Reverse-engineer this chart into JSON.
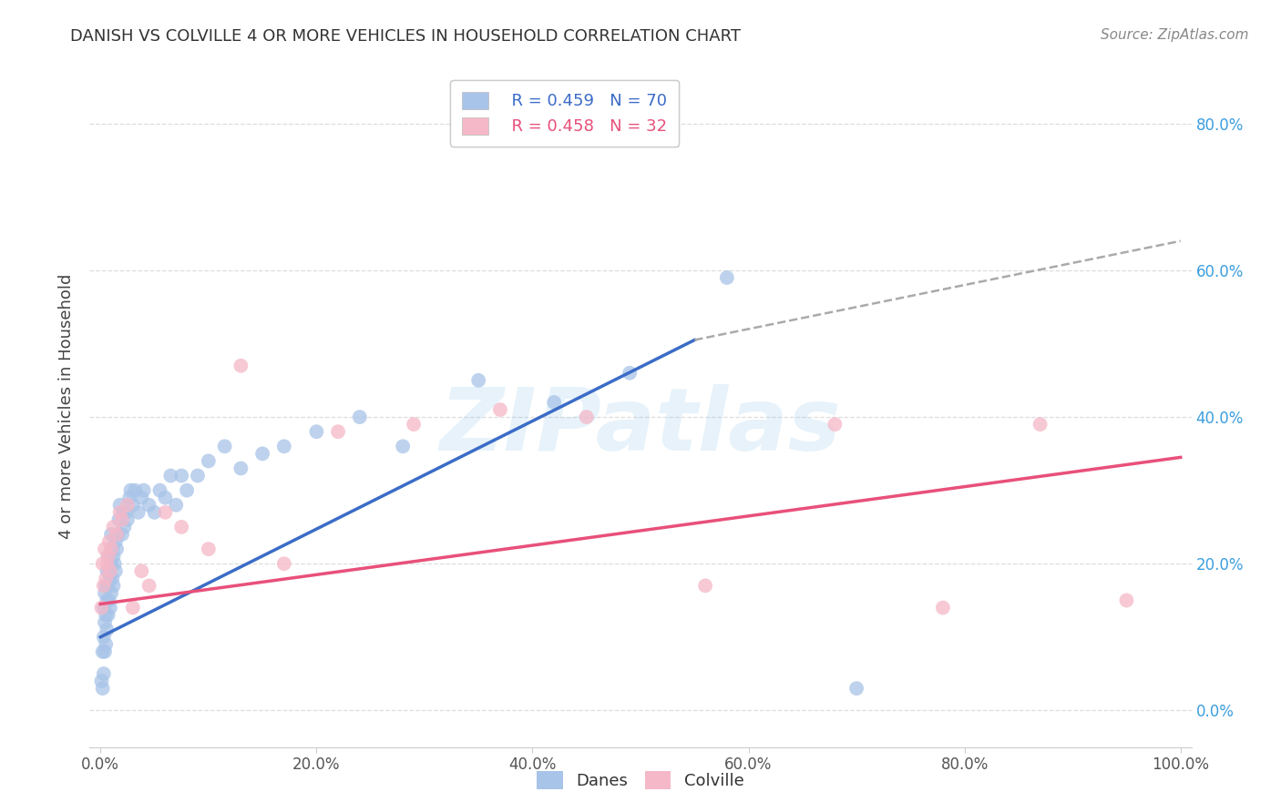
{
  "title": "DANISH VS COLVILLE 4 OR MORE VEHICLES IN HOUSEHOLD CORRELATION CHART",
  "source": "Source: ZipAtlas.com",
  "ylabel": "4 or more Vehicles in Household",
  "legend_blue_text": "R = 0.459   N = 70",
  "legend_pink_text": "R = 0.458   N = 32",
  "danes_color": "#A8C4E8",
  "colville_color": "#F5B8C8",
  "danes_line_color": "#3B6CC7",
  "colville_line_color": "#E8507A",
  "dashed_color": "#AAAAAA",
  "watermark_color": "#7BBCE8",
  "background_color": "#ffffff",
  "grid_color": "#DDDDDD",
  "danes_x": [
    0.001,
    0.002,
    0.002,
    0.003,
    0.003,
    0.003,
    0.004,
    0.004,
    0.004,
    0.005,
    0.005,
    0.005,
    0.006,
    0.006,
    0.006,
    0.007,
    0.007,
    0.007,
    0.008,
    0.008,
    0.009,
    0.009,
    0.01,
    0.01,
    0.01,
    0.011,
    0.011,
    0.012,
    0.012,
    0.013,
    0.014,
    0.014,
    0.015,
    0.016,
    0.017,
    0.018,
    0.02,
    0.021,
    0.022,
    0.024,
    0.025,
    0.027,
    0.028,
    0.03,
    0.032,
    0.035,
    0.038,
    0.04,
    0.045,
    0.05,
    0.055,
    0.06,
    0.065,
    0.07,
    0.075,
    0.08,
    0.09,
    0.1,
    0.115,
    0.13,
    0.15,
    0.17,
    0.2,
    0.24,
    0.28,
    0.35,
    0.42,
    0.49,
    0.58,
    0.7
  ],
  "danes_y": [
    0.04,
    0.03,
    0.08,
    0.05,
    0.1,
    0.14,
    0.08,
    0.12,
    0.16,
    0.09,
    0.13,
    0.17,
    0.11,
    0.15,
    0.19,
    0.13,
    0.17,
    0.21,
    0.15,
    0.19,
    0.14,
    0.18,
    0.16,
    0.2,
    0.24,
    0.18,
    0.22,
    0.17,
    0.21,
    0.2,
    0.19,
    0.23,
    0.22,
    0.24,
    0.26,
    0.28,
    0.24,
    0.27,
    0.25,
    0.27,
    0.26,
    0.29,
    0.3,
    0.28,
    0.3,
    0.27,
    0.29,
    0.3,
    0.28,
    0.27,
    0.3,
    0.29,
    0.32,
    0.28,
    0.32,
    0.3,
    0.32,
    0.34,
    0.36,
    0.33,
    0.35,
    0.36,
    0.38,
    0.4,
    0.36,
    0.45,
    0.42,
    0.46,
    0.59,
    0.03
  ],
  "colville_x": [
    0.001,
    0.002,
    0.003,
    0.004,
    0.005,
    0.006,
    0.007,
    0.008,
    0.009,
    0.01,
    0.012,
    0.015,
    0.018,
    0.02,
    0.025,
    0.03,
    0.038,
    0.045,
    0.06,
    0.075,
    0.1,
    0.13,
    0.17,
    0.22,
    0.29,
    0.37,
    0.45,
    0.56,
    0.68,
    0.78,
    0.87,
    0.95
  ],
  "colville_y": [
    0.14,
    0.2,
    0.17,
    0.22,
    0.18,
    0.2,
    0.21,
    0.23,
    0.19,
    0.22,
    0.25,
    0.24,
    0.27,
    0.26,
    0.28,
    0.14,
    0.19,
    0.17,
    0.27,
    0.25,
    0.22,
    0.47,
    0.2,
    0.38,
    0.39,
    0.41,
    0.4,
    0.17,
    0.39,
    0.14,
    0.39,
    0.15
  ],
  "blue_line_x0": 0.0,
  "blue_line_y0": 0.1,
  "blue_line_x1": 0.55,
  "blue_line_y1": 0.505,
  "dashed_line_x0": 0.55,
  "dashed_line_y0": 0.505,
  "dashed_line_x1": 1.0,
  "dashed_line_y1": 0.64,
  "pink_line_x0": 0.0,
  "pink_line_y0": 0.145,
  "pink_line_x1": 1.0,
  "pink_line_y1": 0.345,
  "xlim_min": -0.01,
  "xlim_max": 1.01,
  "ylim_min": -0.05,
  "ylim_max": 0.88,
  "xtick_positions": [
    0.0,
    0.2,
    0.4,
    0.6,
    0.8,
    1.0
  ],
  "ytick_positions": [
    0.0,
    0.2,
    0.4,
    0.6,
    0.8
  ],
  "title_fontsize": 13,
  "tick_fontsize": 12,
  "label_fontsize": 13,
  "legend_fontsize": 13,
  "source_fontsize": 11,
  "watermark_text": "ZIPatlas",
  "watermark_fontsize": 70
}
